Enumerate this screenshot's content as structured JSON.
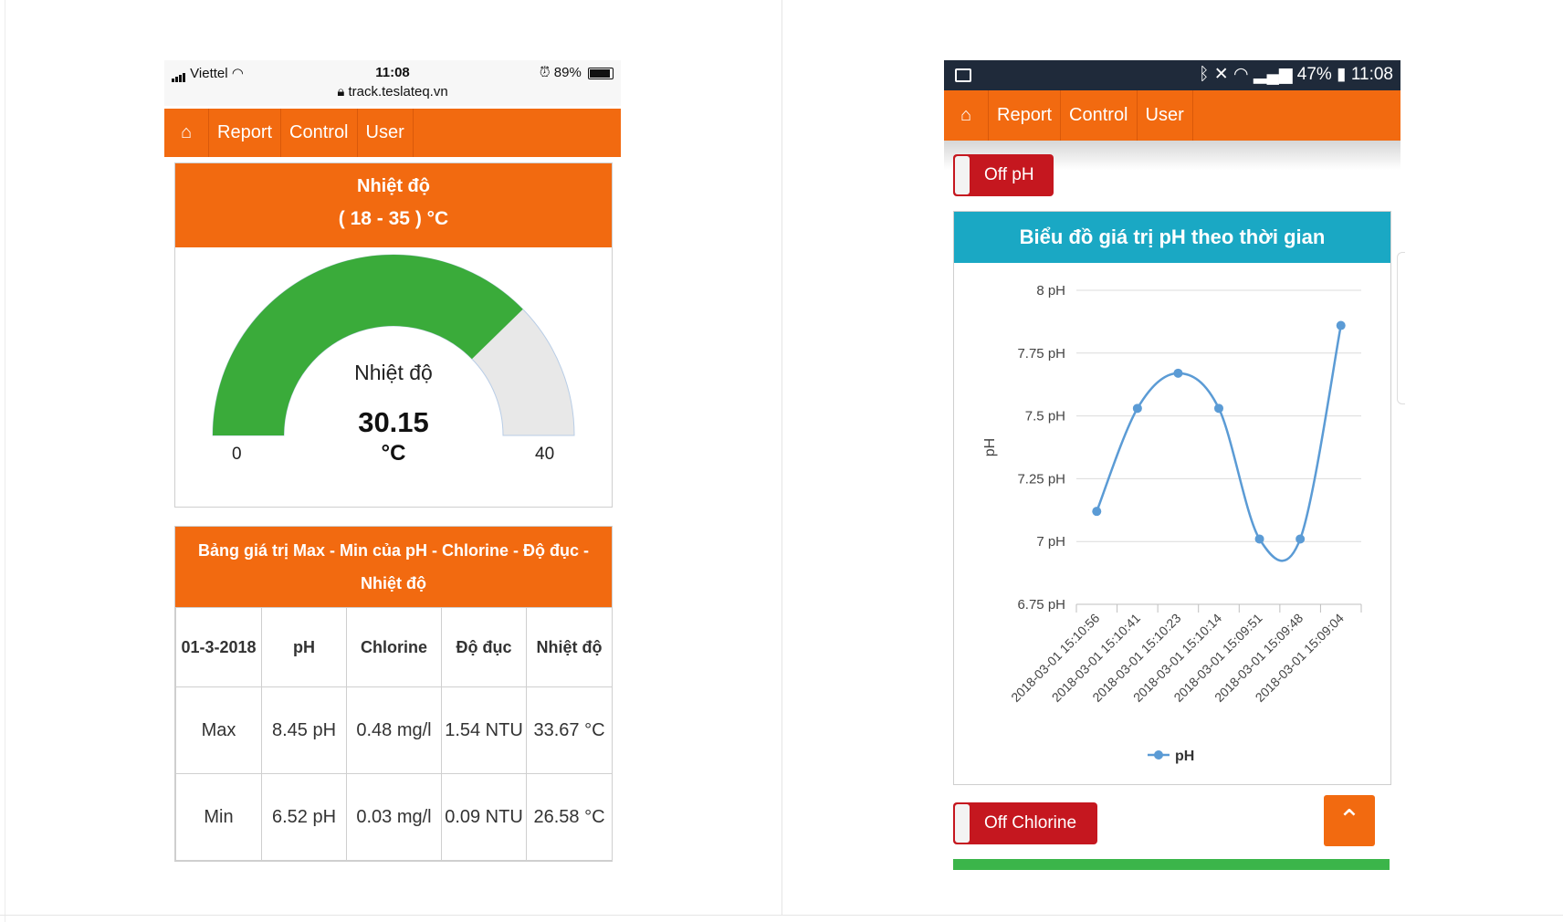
{
  "left_phone": {
    "status": {
      "carrier": "Viettel",
      "time": "11:08",
      "url": "track.teslateq.vn",
      "battery": "89%"
    },
    "nav": {
      "items": [
        "Report",
        "Control",
        "User"
      ]
    },
    "gauge_card": {
      "title": "Nhiệt độ",
      "range": "( 18 - 35 ) °C",
      "gauge_label": "Nhiệt độ",
      "value": "30.15",
      "unit": "°C",
      "min": "0",
      "max": "40",
      "value_fraction": 0.754,
      "fill_color": "#3aab3a",
      "track_color": "#e8e8e8"
    },
    "table_card": {
      "title": "Bảng giá trị Max - Min của pH - Chlorine - Độ đục - Nhiệt độ",
      "headers": [
        "01-3-2018",
        "pH",
        "Chlorine",
        "Độ đục",
        "Nhiệt độ"
      ],
      "rows": [
        {
          "label": "Max",
          "ph": "8.45 pH",
          "chlorine": "0.48 mg/l",
          "turbidity": "1.54 NTU",
          "temp": "33.67 °C"
        },
        {
          "label": "Min",
          "ph": "6.52 pH",
          "chlorine": "0.03 mg/l",
          "turbidity": "0.09 NTU",
          "temp": "26.58 °C"
        }
      ]
    }
  },
  "right_phone": {
    "status": {
      "battery": "47%",
      "time": "11:08"
    },
    "nav": {
      "items": [
        "Report",
        "Control",
        "User"
      ]
    },
    "toggle_ph": "Off pH",
    "toggle_chlorine": "Off Chlorine",
    "chart_title": "Biểu đồ giá trị pH theo thời gian",
    "scroll_top_icon": "chevron-up-icon"
  },
  "colors": {
    "accent": "#f26a10",
    "chart_header": "#1aa8c4",
    "toggle_red": "#c5171f",
    "series": "#5b9bd5",
    "green": "#3bb54a"
  },
  "chart_data": {
    "type": "line",
    "title": "Biểu đồ giá trị pH theo thời gian",
    "xlabel": "",
    "ylabel": "pH",
    "categories": [
      "2018-03-01 15:10:56",
      "2018-03-01 15:10:41",
      "2018-03-01 15:10:23",
      "2018-03-01 15:10:14",
      "2018-03-01 15:09:51",
      "2018-03-01 15:09:48",
      "2018-03-01 15:09:04"
    ],
    "series": [
      {
        "name": "pH",
        "values": [
          7.12,
          7.53,
          7.67,
          7.53,
          7.01,
          7.01,
          7.86
        ],
        "color": "#5b9bd5"
      }
    ],
    "ylim": [
      6.75,
      8
    ],
    "yticks": [
      "6.75 pH",
      "7 pH",
      "7.25 pH",
      "7.5 pH",
      "7.75 pH",
      "8 pH"
    ],
    "grid": true,
    "legend": "bottom-center",
    "smooth": true
  }
}
